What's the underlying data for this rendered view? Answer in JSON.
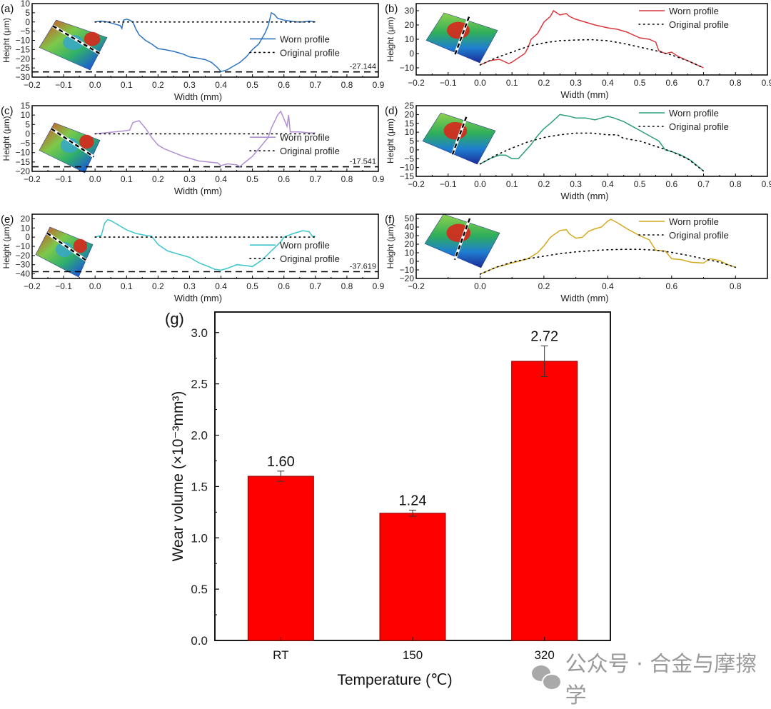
{
  "figure": {
    "watermark": "公众号 · 合金与摩擦学",
    "watermark_icon": "wechat-icon"
  },
  "chart_data": [
    {
      "id": "a",
      "panel_label": "(a)",
      "type": "line",
      "xlabel": "Width (mm)",
      "ylabel": "Height (μm)",
      "xlim": [
        -0.2,
        0.9
      ],
      "ylim": [
        -30,
        10
      ],
      "xticks": [
        -0.2,
        -0.1,
        0.0,
        0.1,
        0.2,
        0.3,
        0.4,
        0.5,
        0.6,
        0.7,
        0.8,
        0.9
      ],
      "yticks": [
        10,
        5,
        0,
        -5,
        -10,
        -15,
        -20,
        -25,
        -30
      ],
      "inset": "3D wear-scar surface map with transverse dashed profile line",
      "depth_line": {
        "value": -27.144,
        "label": "-27.144"
      },
      "legend": {
        "position": "right",
        "entries": [
          "Worn profile",
          "Original profile"
        ]
      },
      "series": [
        {
          "name": "Worn profile",
          "color": "#2e75c0",
          "style": "solid",
          "x": [
            0.0,
            0.02,
            0.04,
            0.06,
            0.08,
            0.085,
            0.09,
            0.1,
            0.11,
            0.12,
            0.13,
            0.14,
            0.16,
            0.18,
            0.2,
            0.22,
            0.25,
            0.28,
            0.3,
            0.32,
            0.35,
            0.37,
            0.39,
            0.4,
            0.42,
            0.44,
            0.46,
            0.48,
            0.5,
            0.52,
            0.53,
            0.54,
            0.55,
            0.56,
            0.57,
            0.58,
            0.6,
            0.62,
            0.64,
            0.66,
            0.68,
            0.7
          ],
          "y": [
            0,
            0.5,
            0,
            -1,
            -2,
            -3.5,
            1,
            1.5,
            1,
            0,
            -4,
            -7,
            -10,
            -12,
            -14.5,
            -15,
            -16,
            -17.5,
            -19,
            -19.5,
            -20.5,
            -22,
            -25,
            -27,
            -26,
            -24,
            -22,
            -19,
            -15,
            -12,
            -9,
            -6,
            -2,
            5,
            4,
            2,
            1,
            0.5,
            0,
            0,
            0.5,
            0
          ]
        },
        {
          "name": "Original profile",
          "color": "#000000",
          "style": "dotted",
          "x": [
            0.0,
            0.7
          ],
          "y": [
            0,
            0
          ]
        }
      ]
    },
    {
      "id": "b",
      "panel_label": "(b)",
      "type": "line",
      "xlabel": "Width (mm)",
      "ylabel": "Height (μm)",
      "xlim": [
        -0.2,
        0.9
      ],
      "ylim": [
        -15,
        35
      ],
      "xticks": [
        -0.2,
        -0.1,
        0.0,
        0.1,
        0.2,
        0.3,
        0.4,
        0.5,
        0.6,
        0.7,
        0.8,
        0.9
      ],
      "yticks": [
        30,
        20,
        10,
        0,
        -10
      ],
      "inset": "3D wear-scar surface map with longitudinal dashed profile line",
      "legend": {
        "position": "top-right",
        "entries": [
          "Worn profile",
          "Original profile"
        ]
      },
      "series": [
        {
          "name": "Worn profile",
          "color": "#d9393e",
          "style": "solid",
          "x": [
            0.0,
            0.03,
            0.06,
            0.09,
            0.1,
            0.12,
            0.14,
            0.15,
            0.16,
            0.18,
            0.2,
            0.22,
            0.23,
            0.25,
            0.27,
            0.28,
            0.3,
            0.33,
            0.36,
            0.4,
            0.43,
            0.46,
            0.5,
            0.53,
            0.55,
            0.56,
            0.58,
            0.6,
            0.62,
            0.65,
            0.68,
            0.7
          ],
          "y": [
            -8,
            -5,
            -4,
            -7,
            -6,
            -3,
            0,
            4,
            10,
            14,
            22,
            26,
            30,
            27,
            28,
            26,
            24,
            22,
            20,
            18,
            17,
            15,
            11,
            10,
            8,
            2,
            0,
            1,
            -2,
            -5,
            -8,
            -10
          ]
        },
        {
          "name": "Original profile",
          "color": "#000000",
          "style": "dotted",
          "x": [
            0.0,
            0.05,
            0.1,
            0.15,
            0.2,
            0.25,
            0.3,
            0.35,
            0.4,
            0.45,
            0.5,
            0.55,
            0.6,
            0.65,
            0.7
          ],
          "y": [
            -8,
            -3,
            1,
            5,
            7.5,
            9,
            9.5,
            9.7,
            9,
            7,
            4.5,
            2,
            -1,
            -5,
            -10
          ]
        }
      ]
    },
    {
      "id": "c",
      "panel_label": "(c)",
      "type": "line",
      "xlabel": "Width (mm)",
      "ylabel": "Height (μm)",
      "xlim": [
        -0.2,
        0.9
      ],
      "ylim": [
        -20,
        15
      ],
      "xticks": [
        -0.2,
        -0.1,
        0.0,
        0.1,
        0.2,
        0.3,
        0.4,
        0.5,
        0.6,
        0.7,
        0.8,
        0.9
      ],
      "yticks": [
        15,
        10,
        5,
        0,
        -5,
        -10,
        -15,
        -20
      ],
      "inset": "3D wear-scar surface map with transverse dashed profile line",
      "depth_line": {
        "value": -17.541,
        "label": "-17.541"
      },
      "legend": {
        "position": "right",
        "entries": [
          "Worn profile",
          "Original profile"
        ]
      },
      "series": [
        {
          "name": "Worn profile",
          "color": "#b08fd4",
          "style": "solid",
          "x": [
            0.0,
            0.03,
            0.06,
            0.09,
            0.11,
            0.12,
            0.14,
            0.15,
            0.16,
            0.18,
            0.2,
            0.22,
            0.25,
            0.28,
            0.3,
            0.33,
            0.36,
            0.39,
            0.4,
            0.42,
            0.45,
            0.46,
            0.47,
            0.5,
            0.52,
            0.54,
            0.55,
            0.56,
            0.58,
            0.59,
            0.6,
            0.61,
            0.615,
            0.62,
            0.65,
            0.68,
            0.7
          ],
          "y": [
            0,
            0.5,
            1,
            1.5,
            2,
            6,
            7,
            5,
            3,
            -2,
            -6,
            -8,
            -10,
            -12,
            -13,
            -14.5,
            -15,
            -15.5,
            -17,
            -16,
            -16.5,
            -17.5,
            -16,
            -12,
            -8,
            -4,
            -2,
            3,
            10,
            12,
            8,
            4,
            10,
            1,
            1,
            0.5,
            0.5
          ]
        },
        {
          "name": "Original profile",
          "color": "#000000",
          "style": "dotted",
          "x": [
            0.0,
            0.7
          ],
          "y": [
            0,
            0
          ]
        }
      ]
    },
    {
      "id": "d",
      "panel_label": "(d)",
      "type": "line",
      "xlabel": "Width (mm)",
      "ylabel": "Height (μm)",
      "xlim": [
        -0.2,
        0.9
      ],
      "ylim": [
        -15,
        25
      ],
      "xticks": [
        -0.2,
        -0.1,
        0.0,
        0.1,
        0.2,
        0.3,
        0.4,
        0.5,
        0.6,
        0.7,
        0.8,
        0.9
      ],
      "yticks": [
        25,
        20,
        15,
        10,
        5,
        0,
        -5,
        -10,
        -15
      ],
      "inset": "3D wear-scar surface map with longitudinal dashed profile line",
      "legend": {
        "position": "top-right",
        "entries": [
          "Worn profile",
          "Original profile"
        ]
      },
      "series": [
        {
          "name": "Worn profile",
          "color": "#2e9e7a",
          "style": "solid",
          "x": [
            0.0,
            0.03,
            0.06,
            0.08,
            0.1,
            0.12,
            0.14,
            0.16,
            0.18,
            0.2,
            0.22,
            0.25,
            0.28,
            0.3,
            0.33,
            0.36,
            0.38,
            0.4,
            0.42,
            0.45,
            0.48,
            0.5,
            0.53,
            0.56,
            0.58,
            0.6,
            0.63,
            0.66,
            0.7
          ],
          "y": [
            -8,
            -5,
            -3,
            -3,
            -5,
            -5,
            -1,
            3,
            8,
            12,
            15,
            20,
            19,
            18,
            18,
            17,
            18,
            19,
            18,
            16,
            13,
            11,
            8,
            5,
            0,
            -1,
            -3,
            -6,
            -12
          ]
        },
        {
          "name": "Original profile",
          "color": "#000000",
          "style": "dotted",
          "x": [
            0.0,
            0.05,
            0.1,
            0.15,
            0.2,
            0.25,
            0.3,
            0.35,
            0.4,
            0.43,
            0.45,
            0.5,
            0.55,
            0.6,
            0.65,
            0.7
          ],
          "y": [
            -8,
            -3,
            1,
            4.5,
            7,
            8.5,
            9.5,
            9.5,
            8.5,
            8.5,
            6.5,
            5,
            2,
            -1,
            -5,
            -12
          ]
        }
      ]
    },
    {
      "id": "e",
      "panel_label": "(e)",
      "type": "line",
      "xlabel": "Width (mm)",
      "ylabel": "Height (μm)",
      "xlim": [
        -0.2,
        0.9
      ],
      "ylim": [
        -45,
        25
      ],
      "xticks": [
        -0.2,
        -0.1,
        0.0,
        0.1,
        0.2,
        0.3,
        0.4,
        0.5,
        0.6,
        0.7,
        0.8,
        0.9
      ],
      "yticks": [
        20,
        10,
        0,
        -10,
        -20,
        -30,
        -40
      ],
      "inset": "3D wear-scar surface map with transverse dashed profile line",
      "depth_line": {
        "value": -37.619,
        "label": "-37.619"
      },
      "legend": {
        "position": "right",
        "entries": [
          "Worn profile",
          "Original profile"
        ]
      },
      "series": [
        {
          "name": "Worn profile",
          "color": "#3cc6cc",
          "style": "solid",
          "x": [
            0.0,
            0.02,
            0.03,
            0.04,
            0.05,
            0.07,
            0.1,
            0.13,
            0.16,
            0.18,
            0.2,
            0.23,
            0.26,
            0.3,
            0.33,
            0.36,
            0.38,
            0.4,
            0.42,
            0.45,
            0.48,
            0.5,
            0.53,
            0.56,
            0.59,
            0.6,
            0.63,
            0.66,
            0.68,
            0.69,
            0.7
          ],
          "y": [
            0,
            2,
            15,
            19,
            18,
            14,
            8,
            4,
            2,
            1,
            -8,
            -15,
            -18,
            -22,
            -28,
            -32,
            -35,
            -36,
            -34,
            -30,
            -31,
            -32,
            -25,
            -15,
            -5,
            0,
            4,
            7,
            6,
            1,
            1
          ]
        },
        {
          "name": "Original profile",
          "color": "#000000",
          "style": "dotted",
          "x": [
            0.0,
            0.7
          ],
          "y": [
            0,
            0
          ]
        }
      ]
    },
    {
      "id": "f",
      "panel_label": "(f)",
      "type": "line",
      "xlabel": "Width (mm)",
      "ylabel": "Height (μm)",
      "xlim": [
        -0.2,
        0.9
      ],
      "ylim": [
        -20,
        55
      ],
      "xticks": [
        -0.2,
        0.0,
        0.2,
        0.4,
        0.6,
        0.8
      ],
      "yticks": [
        50,
        40,
        30,
        20,
        10,
        0,
        -10,
        -20
      ],
      "inset": "3D wear-scar surface map with longitudinal dashed profile line",
      "legend": {
        "position": "top-right",
        "entries": [
          "Worn profile",
          "Original profile"
        ]
      },
      "series": [
        {
          "name": "Worn profile",
          "color": "#d4aa1c",
          "style": "solid",
          "x": [
            0.0,
            0.05,
            0.1,
            0.15,
            0.18,
            0.2,
            0.22,
            0.25,
            0.27,
            0.28,
            0.3,
            0.32,
            0.34,
            0.36,
            0.38,
            0.4,
            0.41,
            0.43,
            0.46,
            0.5,
            0.53,
            0.55,
            0.58,
            0.6,
            0.63,
            0.66,
            0.7,
            0.72,
            0.75,
            0.77,
            0.8
          ],
          "y": [
            -15,
            -7,
            -2,
            3,
            10,
            18,
            28,
            36,
            37,
            32,
            27,
            28,
            35,
            38,
            40,
            47,
            49,
            45,
            38,
            30,
            25,
            13,
            12,
            3,
            2,
            -1,
            -2,
            3,
            1,
            -3,
            -7
          ]
        },
        {
          "name": "Original profile",
          "color": "#000000",
          "style": "dotted",
          "x": [
            0.0,
            0.05,
            0.1,
            0.15,
            0.2,
            0.25,
            0.3,
            0.35,
            0.4,
            0.45,
            0.5,
            0.55,
            0.6,
            0.65,
            0.7,
            0.75,
            0.8
          ],
          "y": [
            -15,
            -7,
            -1,
            3,
            6,
            9,
            11,
            12.5,
            13.5,
            14,
            14,
            13,
            10.5,
            7,
            3,
            -1,
            -7
          ]
        }
      ]
    },
    {
      "id": "g",
      "panel_label": "(g)",
      "type": "bar",
      "xlabel": "Temperature (℃)",
      "ylabel": "Wear volume (×10⁻³mm³)",
      "ylim": [
        0,
        3.2
      ],
      "yticks": [
        "0.0",
        "0.5",
        "1.0",
        "1.5",
        "2.0",
        "2.5",
        "3.0"
      ],
      "categories": [
        "RT",
        "150",
        "320"
      ],
      "values": [
        1.6,
        1.24,
        2.72
      ],
      "errors": [
        0.05,
        0.03,
        0.15
      ],
      "data_labels": [
        "1.60",
        "1.24",
        "2.72"
      ],
      "bar_color": "#ff0000"
    }
  ]
}
